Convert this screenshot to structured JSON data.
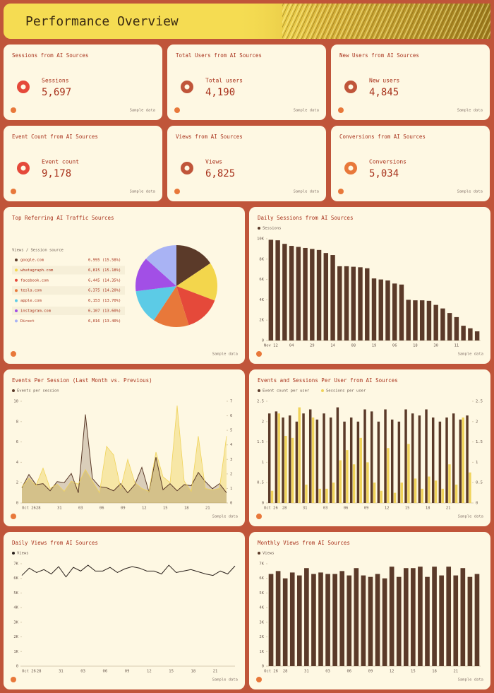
{
  "header": {
    "title": "Performance Overview"
  },
  "footer_note": "Sample data",
  "kpis": [
    {
      "title": "Sessions from AI Sources",
      "label": "Sessions",
      "value": "5,697"
    },
    {
      "title": "Total Users from AI Sources",
      "label": "Total users",
      "value": "4,190"
    },
    {
      "title": "New Users from AI Sources",
      "label": "New users",
      "value": "4,845"
    },
    {
      "title": "Event Count from AI Sources",
      "label": "Event count",
      "value": "9,178"
    },
    {
      "title": "Views from AI Sources",
      "label": "Views",
      "value": "6,825"
    },
    {
      "title": "Conversions from AI Sources",
      "label": "Conversions",
      "value": "5,034"
    }
  ],
  "chart_data": [
    {
      "type": "pie",
      "title": "Top Referring AI Traffic Sources",
      "legend_title": "Views / Session source",
      "categories": [
        "google.com",
        "whatagraph.com",
        "facebook.com",
        "tesla.com",
        "apple.com",
        "instagram.com",
        "Direct"
      ],
      "values": [
        6995,
        6815,
        6445,
        6375,
        6153,
        6107,
        6016
      ],
      "value_labels": [
        "6,995 (15.58%)",
        "6,815 (15.18%)",
        "6,445 (14.35%)",
        "6,375 (14.20%)",
        "6,153 (13.70%)",
        "6,107 (13.60%)",
        "6,016 (13.40%)"
      ],
      "colors": [
        "#5b3a29",
        "#f3d64c",
        "#e5493a",
        "#e8783a",
        "#5ccbe6",
        "#a24fe6",
        "#a9b3f4"
      ]
    },
    {
      "type": "bar",
      "title": "Daily Sessions from AI Sources",
      "categories": [
        "Nov 12",
        null,
        null,
        "04",
        null,
        null,
        "29",
        null,
        null,
        "14",
        null,
        null,
        "08",
        null,
        null,
        "19",
        null,
        null,
        "06",
        null,
        null,
        "18",
        null,
        null,
        "30",
        null,
        null,
        "11",
        null,
        null,
        null
      ],
      "series": [
        {
          "name": "Sessions",
          "color": "#5b3a29",
          "values": [
            9900,
            9850,
            9500,
            9300,
            9200,
            9100,
            9000,
            8900,
            8600,
            8400,
            7300,
            7300,
            7250,
            7200,
            7100,
            6100,
            6000,
            5900,
            5600,
            5500,
            4000,
            3950,
            3950,
            3900,
            3500,
            3150,
            2700,
            2300,
            1450,
            1200,
            900
          ]
        }
      ],
      "ylim": [
        0,
        10000
      ],
      "yticks": [
        0,
        {
          "value": 2000,
          "label": "2K"
        },
        {
          "value": 4000,
          "label": "4K"
        },
        {
          "value": 6000,
          "label": "6K"
        },
        {
          "value": 8000,
          "label": "8K"
        },
        {
          "value": 10000,
          "label": "10K"
        }
      ]
    },
    {
      "type": "area",
      "title": "Events Per Session (Last Month vs. Previous)",
      "categories": [
        "Oct 26",
        null,
        "28",
        null,
        null,
        "31",
        null,
        null,
        "03",
        null,
        null,
        "06",
        null,
        null,
        "09",
        null,
        null,
        "12",
        null,
        null,
        "15",
        null,
        null,
        "18",
        null,
        null,
        "21",
        null,
        null,
        null
      ],
      "series": [
        {
          "name": "Events per session",
          "color": "#5b3a29",
          "values": [
            1.5,
            2.8,
            1.8,
            1.9,
            1.2,
            2.1,
            2.0,
            2.9,
            1.0,
            8.7,
            2.4,
            1.6,
            1.5,
            1.2,
            1.9,
            1.0,
            1.8,
            3.5,
            1.1,
            4.5,
            1.3,
            1.9,
            1.2,
            1.8,
            1.7,
            3.0,
            2.1,
            1.4,
            1.9,
            1.0
          ]
        },
        {
          "color": "#f0d35a",
          "axis": "y2",
          "values": [
            1.1,
            1.7,
            1.2,
            2.4,
            1.0,
            1.3,
            0.8,
            1.5,
            1.3,
            2.3,
            1.5,
            0.7,
            3.9,
            3.3,
            1.0,
            3.0,
            1.4,
            1.0,
            0.8,
            3.5,
            1.8,
            1.4,
            6.7,
            1.5,
            0.8,
            4.6,
            1.0,
            0.9,
            1.0,
            4.6
          ]
        }
      ],
      "ylim": [
        0,
        10
      ],
      "yticks": [
        0,
        2,
        4,
        6,
        8,
        10
      ],
      "y2lim": [
        0,
        7
      ],
      "y2ticks": [
        0,
        1,
        2,
        3,
        4,
        5,
        6,
        7
      ]
    },
    {
      "type": "grouped-bar",
      "title": "Events and Sessions Per User from AI Sources",
      "categories": [
        "Oct 26",
        null,
        "28",
        null,
        null,
        "31",
        null,
        null,
        "03",
        null,
        null,
        "06",
        null,
        null,
        "09",
        null,
        null,
        "12",
        null,
        null,
        "15",
        null,
        null,
        "18",
        null,
        null,
        "21",
        null,
        null,
        null
      ],
      "series": [
        {
          "name": "Event count per user",
          "color": "#5b3a29",
          "values": [
            2.2,
            2.25,
            2.1,
            2.15,
            2.0,
            2.2,
            2.3,
            2.05,
            2.2,
            2.1,
            2.35,
            2.0,
            2.1,
            2.0,
            2.3,
            2.25,
            2.0,
            2.3,
            2.05,
            2.0,
            2.3,
            2.2,
            2.15,
            2.3,
            2.1,
            2.0,
            2.1,
            2.2,
            2.05,
            2.15
          ]
        },
        {
          "name": "Sessions per user",
          "color": "#f0d35a",
          "axis": "y2",
          "values": [
            0.3,
            2.2,
            1.65,
            1.6,
            2.35,
            0.45,
            2.1,
            0.35,
            0.35,
            0.5,
            1.05,
            1.3,
            0.95,
            1.6,
            1.0,
            0.5,
            0.3,
            1.35,
            0.25,
            0.5,
            1.45,
            0.6,
            0.35,
            0.65,
            0.55,
            0.35,
            0.95,
            0.45,
            2.1,
            0.75
          ]
        }
      ],
      "ylim": [
        0,
        2.5
      ],
      "yticks": [
        0,
        0.5,
        1,
        1.5,
        2,
        2.5
      ],
      "y2lim": [
        0,
        2.5
      ],
      "y2ticks": [
        0,
        0.5,
        1,
        1.5,
        2,
        2.5
      ]
    },
    {
      "type": "line",
      "title": "Daily Views from AI Sources",
      "categories": [
        "Oct 26",
        null,
        "28",
        null,
        null,
        "31",
        null,
        null,
        "03",
        null,
        null,
        "06",
        null,
        null,
        "09",
        null,
        null,
        "12",
        null,
        null,
        "15",
        null,
        null,
        "18",
        null,
        null,
        "21",
        null,
        null,
        null
      ],
      "series": [
        {
          "name": "Views",
          "color": "#2a211c",
          "values": [
            6200,
            6700,
            6400,
            6600,
            6300,
            6800,
            6100,
            6750,
            6500,
            6900,
            6500,
            6500,
            6750,
            6400,
            6650,
            6800,
            6700,
            6500,
            6500,
            6300,
            6900,
            6400,
            6500,
            6600,
            6450,
            6300,
            6200,
            6500,
            6300,
            6850
          ]
        }
      ],
      "ylim": [
        0,
        7000
      ],
      "yticks": [
        0,
        {
          "value": 1000,
          "label": "1K"
        },
        {
          "value": 2000,
          "label": "2K"
        },
        {
          "value": 3000,
          "label": "3K"
        },
        {
          "value": 4000,
          "label": "4K"
        },
        {
          "value": 5000,
          "label": "5K"
        },
        {
          "value": 6000,
          "label": "6K"
        },
        {
          "value": 7000,
          "label": "7K"
        }
      ]
    },
    {
      "type": "bar",
      "title": "Monthly Views from AI Sources",
      "categories": [
        "Oct 26",
        null,
        "28",
        null,
        null,
        "31",
        null,
        null,
        "03",
        null,
        null,
        "06",
        null,
        null,
        "09",
        null,
        null,
        "12",
        null,
        null,
        "15",
        null,
        null,
        "18",
        null,
        null,
        "21",
        null,
        null,
        null
      ],
      "series": [
        {
          "name": "Views",
          "color": "#5b3a29",
          "values": [
            6300,
            6500,
            6000,
            6400,
            6200,
            6700,
            6300,
            6400,
            6300,
            6300,
            6500,
            6200,
            6700,
            6200,
            6100,
            6300,
            6000,
            6800,
            6100,
            6700,
            6700,
            6800,
            6100,
            6800,
            6200,
            6800,
            6200,
            6700,
            6100,
            6300
          ]
        }
      ],
      "ylim": [
        0,
        7000
      ],
      "yticks": [
        0,
        {
          "value": 1000,
          "label": "1K"
        },
        {
          "value": 2000,
          "label": "2K"
        },
        {
          "value": 3000,
          "label": "3K"
        },
        {
          "value": 4000,
          "label": "4K"
        },
        {
          "value": 5000,
          "label": "5K"
        },
        {
          "value": 6000,
          "label": "6K"
        },
        {
          "value": 7000,
          "label": "7K"
        }
      ]
    }
  ]
}
